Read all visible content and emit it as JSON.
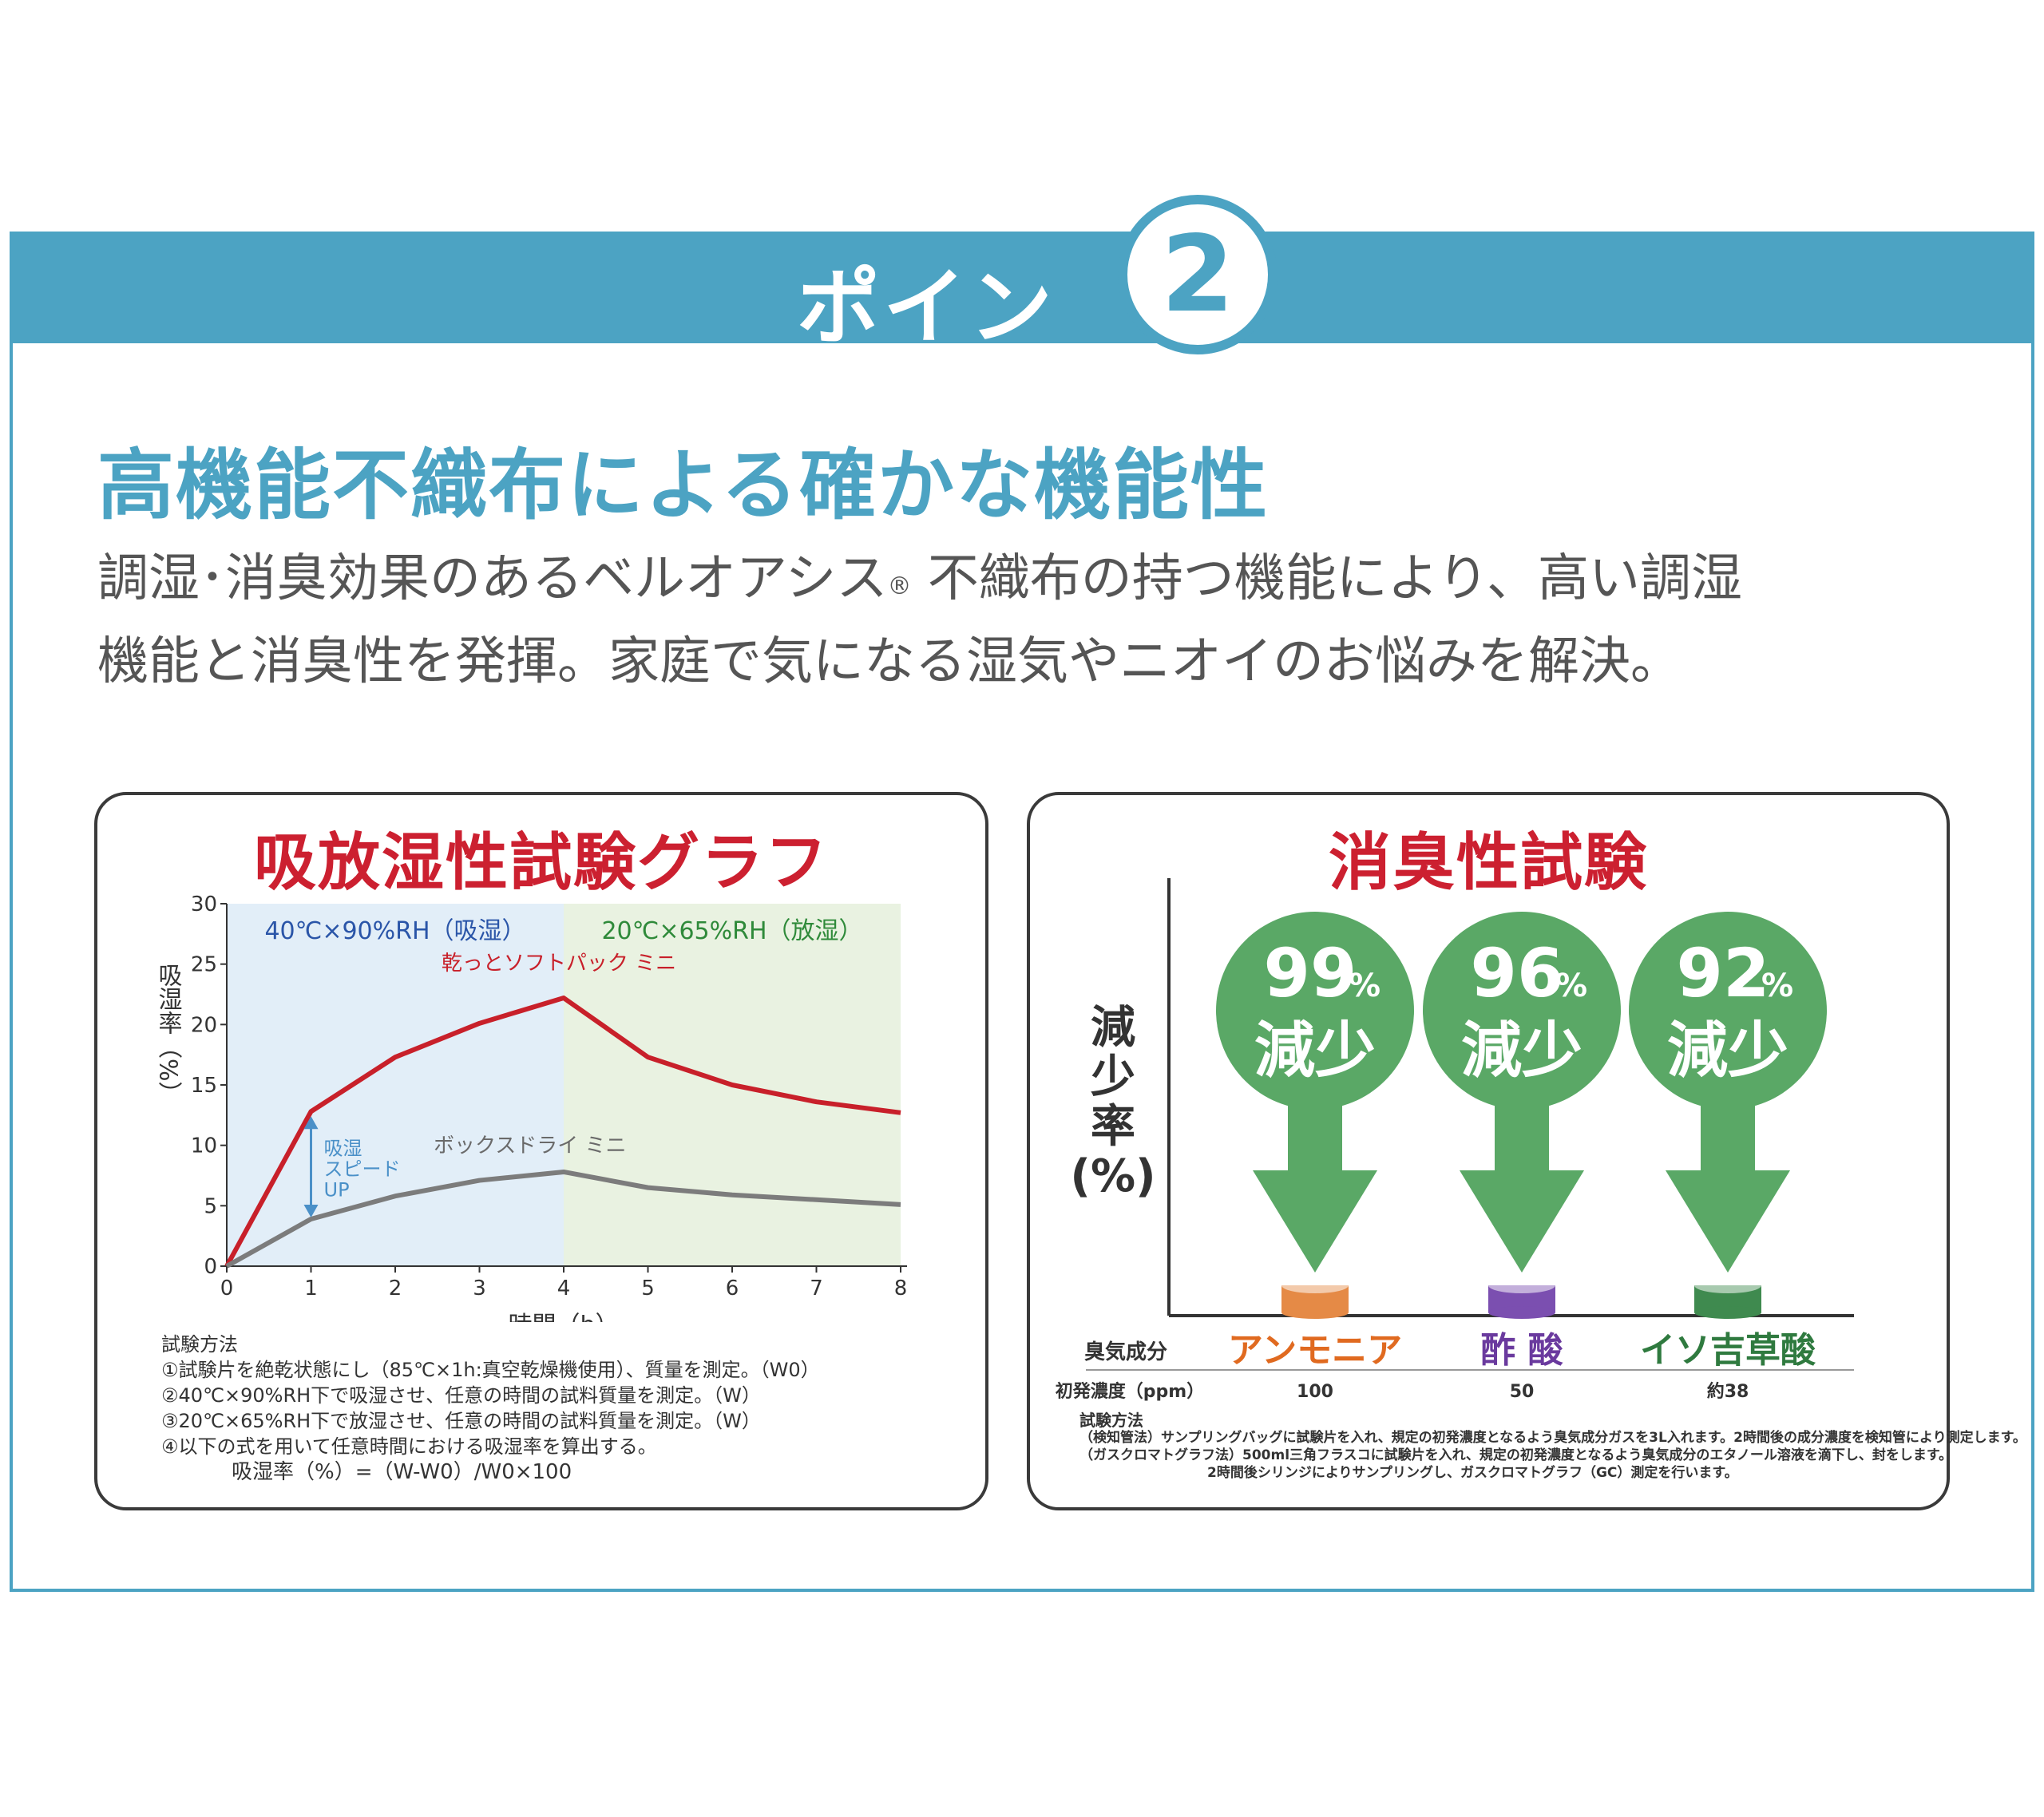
{
  "header": {
    "point_label": "ポイント",
    "point_number": "2"
  },
  "headline": "高機能不織布による確かな機能性",
  "description": {
    "line1_a": "調湿･消臭効果のあるベルオアシス",
    "registered_mark": "®",
    "line1_b": "不織布の持つ機能により、高い調湿",
    "line2": "機能と消臭性を発揮。家庭で気になる湿気やニオイのお悩みを解決。"
  },
  "colors": {
    "accent": "#4ca3c3",
    "title_red": "#cc2030",
    "series_red": "#c8202a",
    "series_gray": "#7c7c7c",
    "phase1_bg": "#e2eef8",
    "phase2_bg": "#e9f2e1",
    "arrow_green": "#5aa866"
  },
  "chart_data": [
    {
      "type": "line",
      "title": "吸放湿性試験グラフ",
      "xlabel": "時間（h）",
      "ylabel": "吸湿率（%）",
      "xlim": [
        0,
        8
      ],
      "ylim": [
        0,
        30
      ],
      "x_ticks": [
        "0",
        "1",
        "2",
        "3",
        "4",
        "5",
        "6",
        "7",
        "8"
      ],
      "y_ticks": [
        "0",
        "5",
        "10",
        "15",
        "20",
        "25",
        "30"
      ],
      "regions": [
        {
          "label": "40℃×90%RH（吸湿）",
          "x_range": [
            0,
            4
          ]
        },
        {
          "label": "20℃×65%RH（放湿）",
          "x_range": [
            4,
            8
          ]
        }
      ],
      "series": [
        {
          "name": "乾っとソフトパック ミニ",
          "x": [
            0,
            1,
            2,
            3,
            4,
            5,
            6,
            7,
            8
          ],
          "values": [
            0,
            12.8,
            17.3,
            20.1,
            22.2,
            17.3,
            15.0,
            13.6,
            12.7
          ]
        },
        {
          "name": "ボックスドライ ミニ",
          "x": [
            0,
            1,
            2,
            3,
            4,
            5,
            6,
            7,
            8
          ],
          "values": [
            0,
            3.9,
            5.8,
            7.1,
            7.8,
            6.5,
            5.9,
            5.5,
            5.1
          ]
        }
      ],
      "annotation": {
        "lines": [
          "吸湿",
          "スピード",
          "UP"
        ],
        "x": 1,
        "from": 3.9,
        "to": 12.8
      },
      "method": {
        "title": "試験方法",
        "steps": [
          "①試験片を絶乾状態にし（85℃×1h:真空乾燥機使用）、質量を測定。（W0）",
          "②40℃×90%RH下で吸湿させ、任意の時間の試料質量を測定。（W）",
          "③20℃×65%RH下で放湿させ、任意の時間の試料質量を測定。（W）",
          "④以下の式を用いて任意時間における吸湿率を算出する。"
        ],
        "formula": "吸湿率（%）=（W-W0）/W0×100"
      }
    },
    {
      "type": "bar",
      "title": "消臭性試験",
      "ylabel_lines": [
        "減",
        "少",
        "率",
        "(%)"
      ],
      "row_label_component": "臭気成分",
      "row_label_conc": "初発濃度（ppm）",
      "categories": [
        "アンモニア",
        "酢 酸",
        "イソ吉草酸"
      ],
      "concentrations": [
        "100",
        "50",
        "約38"
      ],
      "values": [
        99,
        96,
        92
      ],
      "value_unit": "%",
      "value_caption": "減少",
      "cylinder_colors": [
        "#e58a46",
        "#7b4fb0",
        "#3f8a4f"
      ],
      "label_colors": [
        "#e06a20",
        "#6a3a9e",
        "#2f7a3f"
      ],
      "method": {
        "title": "試験方法",
        "lines": [
          "（検知管法）サンプリングバッグに試験片を入れ、規定の初発濃度となるよう臭気成分ガスを3L入れます。2時間後の成分濃度を検知管により測定します。",
          "（ガスクロマトグラフ法）500ml三角フラスコに試験片を入れ、規定の初発濃度となるよう臭気成分のエタノール溶液を滴下し、封をします。",
          "2時間後シリンジによりサンプリングし、ガスクロマトグラフ（GC）測定を行います。"
        ]
      }
    }
  ]
}
